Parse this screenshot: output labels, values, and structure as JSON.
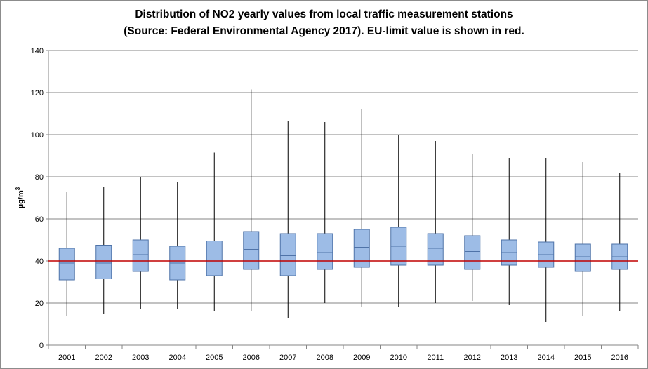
{
  "chart_data": {
    "type": "box",
    "title_line1": "Distribution of NO2 yearly values from local traffic measurement stations",
    "title_line2": "(Source: Federal Environmental Agency 2017). EU-limit value is shown in red.",
    "ylabel": "µg/m³",
    "ylabel_base": "µg/m",
    "ylabel_sup": "3",
    "ylim": [
      0,
      140
    ],
    "yticks": [
      0,
      20,
      40,
      60,
      80,
      100,
      120,
      140
    ],
    "grid": true,
    "limit_value": 40,
    "categories": [
      "2001",
      "2002",
      "2003",
      "2004",
      "2005",
      "2006",
      "2007",
      "2008",
      "2009",
      "2010",
      "2011",
      "2012",
      "2013",
      "2014",
      "2015",
      "2016"
    ],
    "min": [
      14,
      15,
      17,
      17,
      16,
      16,
      13,
      20,
      18,
      18,
      20,
      21,
      19,
      11,
      14,
      16
    ],
    "q1": [
      31,
      31.5,
      35,
      31,
      33,
      36,
      33,
      36,
      37,
      38,
      38,
      36,
      38,
      37,
      35,
      36
    ],
    "median": [
      39,
      39,
      43,
      39,
      40.5,
      45.5,
      42.5,
      44,
      46.5,
      47,
      46,
      44.5,
      44,
      43,
      42,
      42
    ],
    "q3": [
      46,
      47.5,
      50,
      47,
      49.5,
      54,
      53,
      53,
      55,
      56,
      53,
      52,
      50,
      49,
      48,
      48
    ],
    "max": [
      73,
      75,
      80,
      77.5,
      91.5,
      121.5,
      106.5,
      106,
      112,
      100,
      97,
      91,
      89,
      89,
      87,
      82
    ],
    "colors": {
      "box_fill": "#9dbce6",
      "box_stroke": "#4f73a8",
      "whisker": "#000000",
      "limit_line": "#c00000",
      "grid": "#858585"
    }
  }
}
